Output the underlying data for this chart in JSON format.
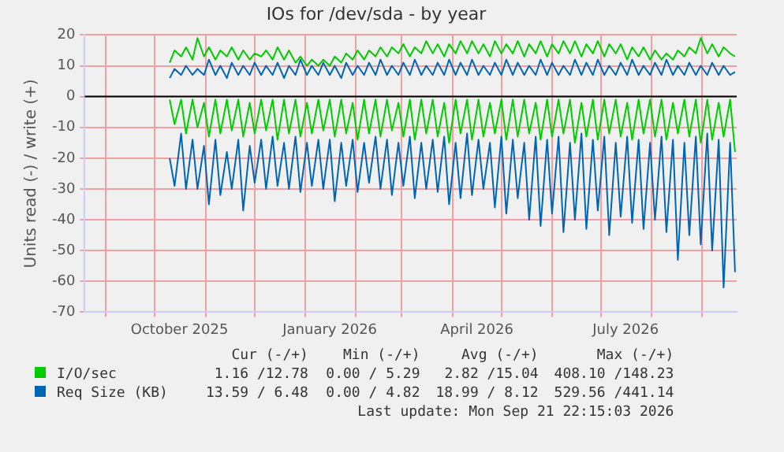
{
  "chart_data": {
    "type": "line",
    "title": "IOs for /dev/sda - by year",
    "ylabel": "Units read (-) / write (+)",
    "x": [
      "2025-10-10",
      "2025-10-13",
      "2025-10-17",
      "2025-10-20",
      "2025-10-24",
      "2025-10-27",
      "2025-10-31",
      "2025-11-03",
      "2025-11-07",
      "2025-11-10",
      "2025-11-14",
      "2025-11-17",
      "2025-11-21",
      "2025-11-24",
      "2025-11-28",
      "2025-12-01",
      "2025-12-05",
      "2025-12-08",
      "2025-12-12",
      "2025-12-15",
      "2025-12-19",
      "2025-12-22",
      "2025-12-26",
      "2025-12-29",
      "2026-01-02",
      "2026-01-05",
      "2026-01-09",
      "2026-01-12",
      "2026-01-16",
      "2026-01-19",
      "2026-01-23",
      "2026-01-26",
      "2026-01-30",
      "2026-02-02",
      "2026-02-06",
      "2026-02-09",
      "2026-02-13",
      "2026-02-16",
      "2026-02-20",
      "2026-02-23",
      "2026-02-27",
      "2026-03-02",
      "2026-03-06",
      "2026-03-09",
      "2026-03-13",
      "2026-03-16",
      "2026-03-20",
      "2026-03-23",
      "2026-03-27",
      "2026-03-30",
      "2026-04-03",
      "2026-04-06",
      "2026-04-10",
      "2026-04-13",
      "2026-04-17",
      "2026-04-20",
      "2026-04-24",
      "2026-04-27",
      "2026-05-01",
      "2026-05-04",
      "2026-05-08",
      "2026-05-11",
      "2026-05-15",
      "2026-05-18",
      "2026-05-22",
      "2026-05-25",
      "2026-05-29",
      "2026-06-01",
      "2026-06-05",
      "2026-06-08",
      "2026-06-12",
      "2026-06-15",
      "2026-06-19",
      "2026-06-22",
      "2026-06-26",
      "2026-06-29",
      "2026-07-03",
      "2026-07-06",
      "2026-07-10",
      "2026-07-13",
      "2026-07-17",
      "2026-07-20",
      "2026-07-24",
      "2026-07-27",
      "2026-07-31",
      "2026-08-03",
      "2026-08-07",
      "2026-08-10",
      "2026-08-14",
      "2026-08-17",
      "2026-08-21",
      "2026-08-24",
      "2026-08-28",
      "2026-08-31",
      "2026-09-04",
      "2026-09-07",
      "2026-09-11",
      "2026-09-14",
      "2026-09-18",
      "2026-09-21"
    ],
    "series": [
      {
        "name": "I/O/sec",
        "color": "#00cc00",
        "values": [
          11,
          15,
          13,
          16,
          12,
          19,
          13,
          16,
          12,
          15,
          13,
          16,
          12,
          15,
          12,
          14,
          13,
          15,
          12,
          16,
          12,
          15,
          11,
          13,
          10,
          12,
          10,
          12,
          10,
          13,
          11,
          14,
          12,
          15,
          12,
          15,
          13,
          16,
          13,
          16,
          14,
          17,
          13,
          16,
          14,
          18,
          14,
          17,
          13,
          17,
          14,
          18,
          14,
          18,
          14,
          17,
          13,
          18,
          14,
          17,
          14,
          18,
          13,
          17,
          14,
          18,
          13,
          17,
          14,
          18,
          14,
          18,
          13,
          17,
          14,
          18,
          13,
          17,
          14,
          17,
          12,
          16,
          13,
          16,
          12,
          15,
          12,
          14,
          12,
          15,
          13,
          16,
          14,
          19,
          14,
          17,
          13,
          16,
          14,
          13
        ]
      },
      {
        "color": "#00cc00",
        "values": [
          -1,
          -9,
          -1,
          -12,
          -1,
          -10,
          -2,
          -13,
          -1,
          -12,
          -1,
          -11,
          -1,
          -13,
          -2,
          -12,
          -1,
          -11,
          -1,
          -14,
          -1,
          -12,
          -1,
          -13,
          -2,
          -12,
          -1,
          -11,
          -1,
          -13,
          -1,
          -12,
          -2,
          -14,
          -1,
          -12,
          -1,
          -13,
          -1,
          -11,
          -2,
          -13,
          -1,
          -14,
          -1,
          -12,
          -1,
          -13,
          -2,
          -15,
          -1,
          -12,
          -1,
          -14,
          -1,
          -13,
          -2,
          -12,
          -1,
          -14,
          -1,
          -13,
          -1,
          -12,
          -2,
          -14,
          -1,
          -13,
          -1,
          -12,
          -1,
          -15,
          -2,
          -13,
          -1,
          -14,
          -1,
          -12,
          -1,
          -13,
          -2,
          -14,
          -1,
          -12,
          -1,
          -13,
          -1,
          -14,
          -2,
          -12,
          -1,
          -13,
          -1,
          -15,
          -1,
          -14,
          -2,
          -13,
          -1,
          -18
        ]
      },
      {
        "name": "Req Size (KB)",
        "color": "#0066b3",
        "values": [
          6,
          9,
          7,
          10,
          7,
          9,
          7,
          12,
          7,
          10,
          6,
          11,
          7,
          10,
          7,
          11,
          7,
          10,
          7,
          11,
          6,
          10,
          7,
          12,
          7,
          10,
          7,
          11,
          7,
          10,
          6,
          11,
          7,
          10,
          7,
          11,
          7,
          12,
          7,
          10,
          7,
          11,
          7,
          12,
          7,
          10,
          7,
          11,
          7,
          12,
          7,
          11,
          7,
          12,
          7,
          10,
          7,
          11,
          7,
          12,
          7,
          11,
          7,
          10,
          7,
          12,
          7,
          11,
          7,
          10,
          7,
          12,
          7,
          11,
          7,
          12,
          7,
          10,
          7,
          11,
          7,
          12,
          7,
          10,
          7,
          11,
          7,
          12,
          7,
          10,
          7,
          11,
          7,
          10,
          7,
          11,
          7,
          10,
          7,
          8
        ]
      },
      {
        "color": "#0066b3",
        "values": [
          -20,
          -29,
          -12,
          -30,
          -14,
          -30,
          -16,
          -35,
          -14,
          -32,
          -18,
          -30,
          -14,
          -37,
          -16,
          -28,
          -14,
          -30,
          -13,
          -29,
          -15,
          -30,
          -13,
          -31,
          -15,
          -29,
          -14,
          -30,
          -14,
          -34,
          -15,
          -29,
          -14,
          -31,
          -15,
          -28,
          -13,
          -30,
          -14,
          -32,
          -15,
          -29,
          -13,
          -33,
          -15,
          -30,
          -14,
          -31,
          -13,
          -35,
          -15,
          -33,
          -12,
          -32,
          -14,
          -30,
          -15,
          -36,
          -13,
          -38,
          -14,
          -33,
          -15,
          -40,
          -13,
          -42,
          -14,
          -38,
          -13,
          -44,
          -15,
          -40,
          -12,
          -43,
          -14,
          -37,
          -13,
          -45,
          -15,
          -39,
          -13,
          -41,
          -14,
          -43,
          -15,
          -40,
          -13,
          -44,
          -14,
          -53,
          -15,
          -45,
          -13,
          -48,
          -12,
          -50,
          -14,
          -62,
          -15,
          -57
        ]
      }
    ],
    "xlim": [
      "2025-08-19",
      "2026-09-22"
    ],
    "xticks": [
      {
        "value": "2025-09-01",
        "label": null
      },
      {
        "value": "2025-10-01",
        "label": null
      },
      {
        "value": "2025-10-16",
        "label": "October 2025"
      },
      {
        "value": "2025-11-01",
        "label": null
      },
      {
        "value": "2025-12-01",
        "label": null
      },
      {
        "value": "2026-01-01",
        "label": null
      },
      {
        "value": "2026-01-16",
        "label": "January 2026"
      },
      {
        "value": "2026-02-01",
        "label": null
      },
      {
        "value": "2026-03-01",
        "label": null
      },
      {
        "value": "2026-04-01",
        "label": null
      },
      {
        "value": "2026-04-16",
        "label": "April 2026"
      },
      {
        "value": "2026-05-01",
        "label": null
      },
      {
        "value": "2026-06-01",
        "label": null
      },
      {
        "value": "2026-07-01",
        "label": null
      },
      {
        "value": "2026-07-16",
        "label": "July 2026"
      },
      {
        "value": "2026-08-01",
        "label": null
      },
      {
        "value": "2026-09-01",
        "label": null
      }
    ],
    "ylim": [
      -70,
      20
    ],
    "yticks": [
      -70,
      -60,
      -50,
      -40,
      -30,
      -20,
      -10,
      0,
      10,
      20
    ],
    "grid": true,
    "legend": "bottom",
    "marker": "none",
    "line_style": "solid",
    "ref_lines": [
      {
        "axis": "y",
        "value": 0,
        "color": "#000000"
      }
    ],
    "annotations": [
      "Cur (-/+)",
      "Min (-/+)",
      "Avg (-/+)",
      "Max (-/+)",
      "1.16 /12.78",
      "0.00 / 5.29",
      "2.82 /15.04",
      "408.10 /148.23",
      "13.59 / 6.48",
      "0.00 / 4.82",
      "18.99 / 8.12",
      "529.56 /441.14",
      "Last update: Mon Sep 21 22:15:03 2026"
    ]
  }
}
